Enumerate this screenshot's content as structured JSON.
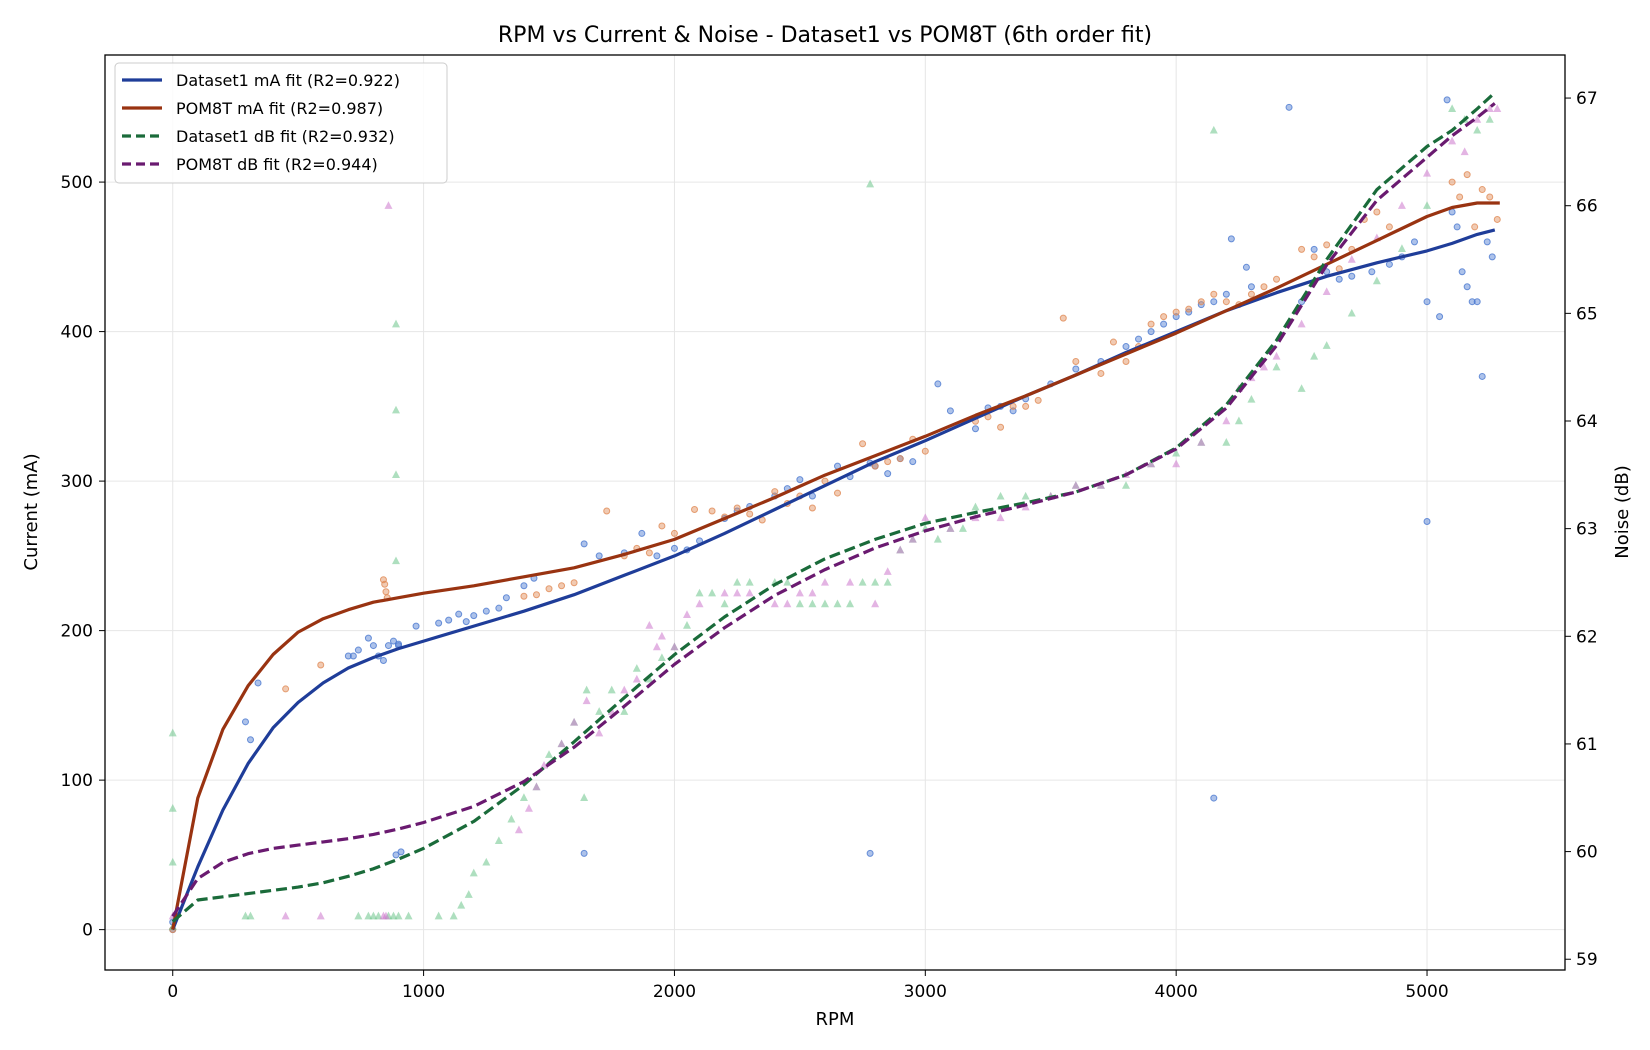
{
  "chart_data": {
    "type": "scatter",
    "title": "RPM vs Current & Noise - Dataset1 vs POM8T (6th order fit)",
    "xlabel": "RPM",
    "ylabel": "Current (mA)",
    "y2label": "Noise (dB)",
    "xlim": [
      -270,
      5550
    ],
    "ylim": [
      -27,
      585
    ],
    "y2lim": [
      58.9,
      67.4
    ],
    "xticks": [
      0,
      1000,
      2000,
      3000,
      4000,
      5000
    ],
    "yticks": [
      0,
      100,
      200,
      300,
      400,
      500
    ],
    "y2ticks": [
      59,
      60,
      61,
      62,
      63,
      64,
      65,
      66,
      67
    ],
    "grid": true,
    "legend_position": "top-left",
    "colors": {
      "dataset1_ma": "#1f3d99",
      "pom8t_ma": "#993311",
      "dataset1_db": "#1a6b3a",
      "pom8t_db": "#6a1a70",
      "dataset1_ma_points": "#4a78d0",
      "pom8t_ma_points": "#e08a55",
      "dataset1_db_points": "#6cc48a",
      "pom8t_db_points": "#cc77cc"
    },
    "legend": [
      {
        "label": "Dataset1 mA fit (R2=0.922)",
        "color": "#1f3d99",
        "dashed": false
      },
      {
        "label": "POM8T mA fit (R2=0.987)",
        "color": "#993311",
        "dashed": false
      },
      {
        "label": "Dataset1 dB fit (R2=0.932)",
        "color": "#1a6b3a",
        "dashed": true
      },
      {
        "label": "POM8T dB fit (R2=0.944)",
        "color": "#6a1a70",
        "dashed": true
      }
    ],
    "fits": [
      {
        "name": "Dataset1 mA fit (R2=0.922)",
        "axis": "left",
        "dashed": false,
        "color": "#1f3d99",
        "x": [
          0,
          100,
          200,
          300,
          400,
          500,
          600,
          700,
          800,
          900,
          1000,
          1200,
          1400,
          1600,
          1800,
          2000,
          2200,
          2400,
          2600,
          2800,
          3000,
          3200,
          3400,
          3600,
          3800,
          4000,
          4200,
          4400,
          4600,
          4800,
          5000,
          5100,
          5200,
          5270
        ],
        "y": [
          0,
          42,
          80,
          111,
          135,
          152,
          165,
          175,
          182,
          188,
          193,
          203,
          213,
          224,
          237,
          250,
          265,
          281,
          297,
          313,
          327,
          342,
          357,
          371,
          386,
          400,
          414,
          426,
          437,
          446,
          454,
          459,
          465,
          468
        ]
      },
      {
        "name": "POM8T mA fit (R2=0.987)",
        "axis": "left",
        "dashed": false,
        "color": "#993311",
        "x": [
          0,
          100,
          200,
          300,
          400,
          500,
          600,
          700,
          800,
          900,
          1000,
          1200,
          1400,
          1600,
          1800,
          2000,
          2200,
          2400,
          2600,
          2800,
          3000,
          3200,
          3400,
          3600,
          3800,
          4000,
          4200,
          4400,
          4600,
          4800,
          5000,
          5100,
          5200,
          5290
        ],
        "y": [
          0,
          88,
          134,
          163,
          184,
          199,
          208,
          214,
          219,
          222,
          225,
          230,
          236,
          242,
          251,
          261,
          275,
          289,
          304,
          317,
          330,
          344,
          357,
          371,
          385,
          399,
          414,
          429,
          445,
          461,
          477,
          483,
          486,
          486
        ]
      },
      {
        "name": "Dataset1 dB fit (R2=0.932)",
        "axis": "right",
        "dashed": true,
        "color": "#1a6b3a",
        "x": [
          0,
          100,
          200,
          300,
          400,
          500,
          600,
          700,
          800,
          900,
          1000,
          1200,
          1400,
          1600,
          1800,
          2000,
          2200,
          2400,
          2600,
          2800,
          3000,
          3200,
          3400,
          3600,
          3800,
          4000,
          4200,
          4400,
          4600,
          4800,
          5000,
          5100,
          5200,
          5270
        ],
        "y": [
          59.35,
          59.55,
          59.58,
          59.61,
          59.64,
          59.67,
          59.71,
          59.77,
          59.84,
          59.93,
          60.03,
          60.28,
          60.62,
          61.02,
          61.43,
          61.83,
          62.18,
          62.48,
          62.72,
          62.9,
          63.05,
          63.15,
          63.24,
          63.34,
          63.5,
          63.75,
          64.15,
          64.75,
          65.5,
          66.15,
          66.55,
          66.7,
          66.9,
          67.05
        ]
      },
      {
        "name": "POM8T dB fit (R2=0.944)",
        "axis": "right",
        "dashed": true,
        "color": "#6a1a70",
        "x": [
          0,
          100,
          200,
          300,
          400,
          500,
          600,
          700,
          800,
          900,
          1000,
          1200,
          1400,
          1600,
          1800,
          2000,
          2200,
          2400,
          2600,
          2800,
          3000,
          3200,
          3400,
          3600,
          3800,
          4000,
          4200,
          4400,
          4600,
          4800,
          5000,
          5100,
          5200,
          5270
        ],
        "y": [
          59.4,
          59.75,
          59.9,
          59.98,
          60.03,
          60.06,
          60.09,
          60.12,
          60.16,
          60.21,
          60.27,
          60.42,
          60.65,
          60.97,
          61.35,
          61.74,
          62.08,
          62.38,
          62.62,
          62.82,
          62.98,
          63.11,
          63.22,
          63.34,
          63.5,
          63.74,
          64.12,
          64.7,
          65.45,
          66.05,
          66.45,
          66.65,
          66.82,
          66.95
        ]
      }
    ],
    "scatter": [
      {
        "name": "Dataset1 mA",
        "axis": "left",
        "marker": "circle",
        "color": "#4a78d0",
        "x": [
          0,
          0,
          290,
          310,
          340,
          700,
          720,
          740,
          780,
          800,
          820,
          840,
          860,
          880,
          900,
          910,
          890,
          900,
          970,
          1060,
          1100,
          1140,
          1170,
          1200,
          1250,
          1300,
          1330,
          1400,
          1440,
          1640,
          1700,
          1800,
          1870,
          1930,
          2000,
          2050,
          2100,
          2200,
          2250,
          2300,
          2400,
          2450,
          2500,
          2550,
          2650,
          2700,
          2780,
          2800,
          2850,
          2900,
          2950,
          3050,
          3100,
          3200,
          3250,
          3300,
          3350,
          3400,
          3500,
          3600,
          3700,
          3800,
          3850,
          3900,
          3950,
          4000,
          4050,
          4100,
          4150,
          4200,
          4220,
          4280,
          4300,
          4450,
          4500,
          4550,
          4600,
          4650,
          4700,
          4780,
          4850,
          4900,
          4950,
          5000,
          5000,
          5050,
          5080,
          5100,
          5120,
          5140,
          5160,
          5180,
          5200,
          5220,
          5240,
          5260,
          4150,
          2780,
          1640
        ],
        "y": [
          0,
          5,
          139,
          127,
          165,
          183,
          183,
          187,
          195,
          190,
          183,
          180,
          190,
          193,
          191,
          52,
          50,
          190,
          203,
          205,
          207,
          211,
          206,
          210,
          213,
          215,
          222,
          230,
          235,
          258,
          250,
          252,
          265,
          250,
          255,
          254,
          260,
          275,
          280,
          283,
          290,
          295,
          301,
          290,
          310,
          303,
          312,
          310,
          305,
          315,
          313,
          365,
          347,
          335,
          349,
          350,
          347,
          355,
          365,
          375,
          380,
          390,
          395,
          400,
          405,
          410,
          413,
          418,
          420,
          425,
          462,
          443,
          430,
          550,
          420,
          455,
          440,
          435,
          437,
          440,
          445,
          450,
          460,
          420,
          273,
          410,
          555,
          480,
          470,
          440,
          430,
          420,
          420,
          370,
          460,
          450,
          88,
          51,
          51
        ]
      },
      {
        "name": "POM8T mA",
        "axis": "left",
        "marker": "circle",
        "color": "#e08a55",
        "x": [
          0,
          450,
          590,
          840,
          845,
          850,
          855,
          1400,
          1450,
          1500,
          1550,
          1600,
          1730,
          1800,
          1850,
          1900,
          1950,
          2000,
          2080,
          2150,
          2200,
          2250,
          2300,
          2350,
          2400,
          2450,
          2500,
          2550,
          2600,
          2650,
          2750,
          2800,
          2850,
          2900,
          2950,
          3000,
          3200,
          3250,
          3300,
          3350,
          3400,
          3450,
          3550,
          3600,
          3700,
          3750,
          3800,
          3850,
          3900,
          3950,
          4000,
          4050,
          4100,
          4150,
          4200,
          4250,
          4300,
          4350,
          4400,
          4500,
          4550,
          4600,
          4650,
          4700,
          4750,
          4800,
          4850,
          5100,
          5130,
          5160,
          5190,
          5220,
          5250,
          5280
        ],
        "y": [
          0,
          161,
          177,
          234,
          231,
          226,
          222,
          223,
          224,
          228,
          230,
          232,
          280,
          250,
          255,
          252,
          270,
          265,
          281,
          280,
          276,
          282,
          278,
          274,
          293,
          285,
          290,
          282,
          300,
          292,
          325,
          310,
          313,
          315,
          328,
          320,
          340,
          343,
          336,
          350,
          350,
          354,
          409,
          380,
          372,
          393,
          380,
          390,
          405,
          410,
          413,
          415,
          420,
          425,
          420,
          418,
          425,
          430,
          435,
          455,
          450,
          458,
          442,
          455,
          475,
          480,
          470,
          500,
          490,
          505,
          470,
          495,
          490,
          475
        ]
      },
      {
        "name": "Dataset1 dB",
        "axis": "right",
        "marker": "triangle",
        "color": "#6cc48a",
        "x": [
          0,
          0,
          0,
          0,
          290,
          310,
          740,
          780,
          800,
          820,
          860,
          880,
          900,
          940,
          1060,
          1120,
          1150,
          1180,
          1200,
          1250,
          1300,
          1350,
          1400,
          1450,
          1500,
          1550,
          1600,
          1650,
          1700,
          1750,
          1800,
          1850,
          1900,
          1950,
          2000,
          2050,
          2100,
          2150,
          2200,
          2250,
          2300,
          2400,
          2450,
          2500,
          2550,
          2600,
          2650,
          2700,
          2750,
          2800,
          2850,
          2900,
          2950,
          3000,
          3050,
          3100,
          3150,
          3200,
          3300,
          3400,
          3500,
          3600,
          3700,
          3800,
          3900,
          4000,
          4100,
          4200,
          4250,
          4300,
          4400,
          4500,
          4550,
          4600,
          4700,
          4800,
          4900,
          5000,
          5100,
          5150,
          5200,
          5250,
          890,
          890,
          890,
          890,
          1640,
          2780,
          4150
        ],
        "y": [
          59.3,
          59.9,
          60.4,
          61.1,
          59.4,
          59.4,
          59.4,
          59.4,
          59.4,
          59.4,
          59.4,
          59.4,
          59.4,
          59.4,
          59.4,
          59.4,
          59.5,
          59.6,
          59.8,
          59.9,
          60.1,
          60.3,
          60.5,
          60.6,
          60.9,
          61.0,
          61.2,
          61.5,
          61.3,
          61.5,
          61.3,
          61.7,
          61.6,
          61.8,
          61.9,
          62.1,
          62.4,
          62.4,
          62.3,
          62.5,
          62.5,
          62.5,
          62.5,
          62.3,
          62.3,
          62.3,
          62.3,
          62.3,
          62.5,
          62.5,
          62.5,
          62.8,
          62.9,
          63.0,
          62.9,
          63.0,
          63.0,
          63.2,
          63.3,
          63.3,
          63.3,
          63.4,
          63.4,
          63.4,
          63.6,
          63.7,
          63.8,
          63.8,
          64.0,
          64.2,
          64.5,
          64.3,
          64.6,
          64.7,
          65.0,
          65.3,
          65.6,
          66.0,
          66.9,
          66.8,
          66.7,
          66.8,
          64.9,
          64.1,
          63.5,
          62.7,
          60.5,
          66.2,
          66.7
        ]
      },
      {
        "name": "POM8T dB",
        "axis": "right",
        "marker": "triangle",
        "color": "#cc77cc",
        "x": [
          0,
          450,
          590,
          840,
          850,
          860,
          1380,
          1420,
          1450,
          1480,
          1550,
          1600,
          1650,
          1700,
          1750,
          1800,
          1850,
          1900,
          1930,
          1950,
          2000,
          2050,
          2100,
          2200,
          2250,
          2300,
          2400,
          2450,
          2500,
          2550,
          2600,
          2700,
          2800,
          2850,
          2900,
          2950,
          3000,
          3100,
          3200,
          3300,
          3400,
          3500,
          3600,
          3700,
          3800,
          3900,
          4000,
          4100,
          4200,
          4250,
          4300,
          4350,
          4400,
          4500,
          4600,
          4700,
          4800,
          4900,
          5000,
          5100,
          5150,
          5200,
          5250,
          5280
        ],
        "y": [
          59.4,
          59.4,
          59.4,
          59.4,
          59.4,
          66.0,
          60.2,
          60.4,
          60.6,
          60.8,
          61.0,
          61.2,
          61.4,
          61.1,
          61.3,
          61.5,
          61.6,
          62.1,
          61.9,
          62.0,
          61.9,
          62.2,
          62.3,
          62.4,
          62.4,
          62.4,
          62.3,
          62.3,
          62.4,
          62.4,
          62.5,
          62.5,
          62.3,
          62.6,
          62.8,
          62.9,
          63.1,
          63.0,
          63.1,
          63.1,
          63.2,
          63.3,
          63.4,
          63.4,
          63.5,
          63.6,
          63.6,
          63.8,
          64.0,
          64.3,
          64.4,
          64.5,
          64.6,
          64.9,
          65.2,
          65.5,
          65.7,
          66.0,
          66.3,
          66.6,
          66.5,
          66.8,
          66.9,
          66.9
        ]
      }
    ]
  }
}
